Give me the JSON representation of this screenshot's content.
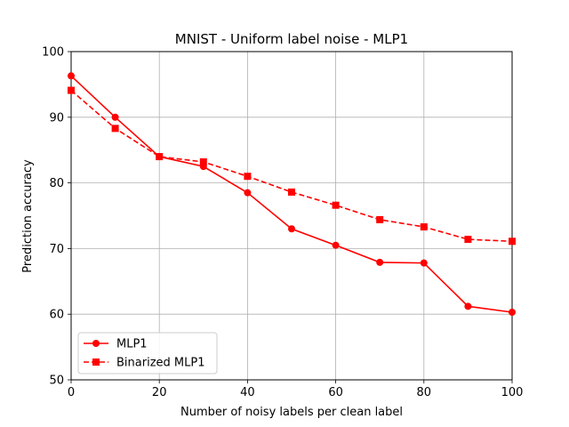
{
  "chart_data": {
    "type": "line",
    "title": "MNIST - Uniform label noise - MLP1",
    "xlabel": "Number of noisy labels per clean label",
    "ylabel": "Prediction accuracy",
    "xlim": [
      0,
      100
    ],
    "ylim": [
      50,
      100
    ],
    "xticks": [
      0,
      20,
      40,
      60,
      80,
      100
    ],
    "yticks": [
      50,
      60,
      70,
      80,
      90,
      100
    ],
    "grid": true,
    "legend_position": "lower-left",
    "x": [
      0,
      10,
      20,
      30,
      40,
      50,
      60,
      70,
      80,
      90,
      100
    ],
    "series": [
      {
        "name": "MLP1",
        "color": "#ff0000",
        "line_style": "solid",
        "marker": "circle",
        "values": [
          96.3,
          90.0,
          84.0,
          82.5,
          78.5,
          73.0,
          70.5,
          67.9,
          67.8,
          61.2,
          60.3
        ]
      },
      {
        "name": "Binarized MLP1",
        "color": "#ff0000",
        "line_style": "dashed",
        "marker": "square",
        "values": [
          94.1,
          88.3,
          84.0,
          83.2,
          81.0,
          78.6,
          76.6,
          74.4,
          73.3,
          71.4,
          71.1
        ]
      }
    ]
  }
}
